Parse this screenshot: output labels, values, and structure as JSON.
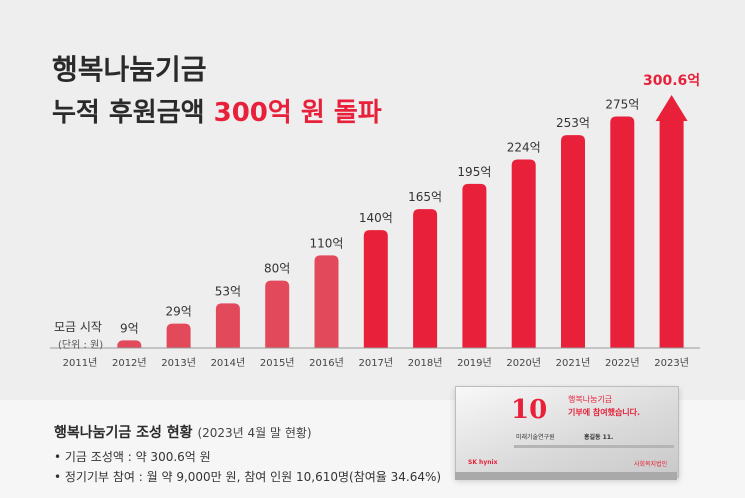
{
  "headline": {
    "line1": "행복나눔기금",
    "line2_prefix": "누적 후원금액 ",
    "line2_highlight": "300억 원 돌파"
  },
  "chart_data": {
    "type": "bar",
    "categories": [
      "2011년",
      "2012년",
      "2013년",
      "2014년",
      "2015년",
      "2016년",
      "2017년",
      "2018년",
      "2019년",
      "2020년",
      "2021년",
      "2022년",
      "2023년"
    ],
    "values": [
      0,
      9,
      29,
      53,
      80,
      110,
      140,
      165,
      195,
      224,
      253,
      275,
      300.6
    ],
    "labels": [
      "",
      "9억",
      "29억",
      "53억",
      "80억",
      "110억",
      "140억",
      "165억",
      "195억",
      "224억",
      "253억",
      "275억",
      "300.6억"
    ],
    "start_label": "모금 시작",
    "unit_label": "(단위 : 원)",
    "ylim": [
      0,
      300.6
    ],
    "last_bar_style": "arrow",
    "bar_color": "#e8203a",
    "bar_color_light": "#e24a5c"
  },
  "status": {
    "title": "행복나눔기금 조성 현황",
    "as_of": "(2023년 4월 말 현황)",
    "bullets": [
      "• 기금 조성액 : 약 300.6억 원",
      "• 정기기부 참여 : 월 약 9,000만 원, 참여 인원 10,610명(참여율 34.64%)"
    ]
  },
  "plaque": {
    "number": "10",
    "title1": "행복나눔기금",
    "title2": "기부에 참여했습니다.",
    "line1": "미래기술연구원",
    "name": "홍길동 11.",
    "brand": "SK hynix",
    "seal": "사회복지법인"
  }
}
